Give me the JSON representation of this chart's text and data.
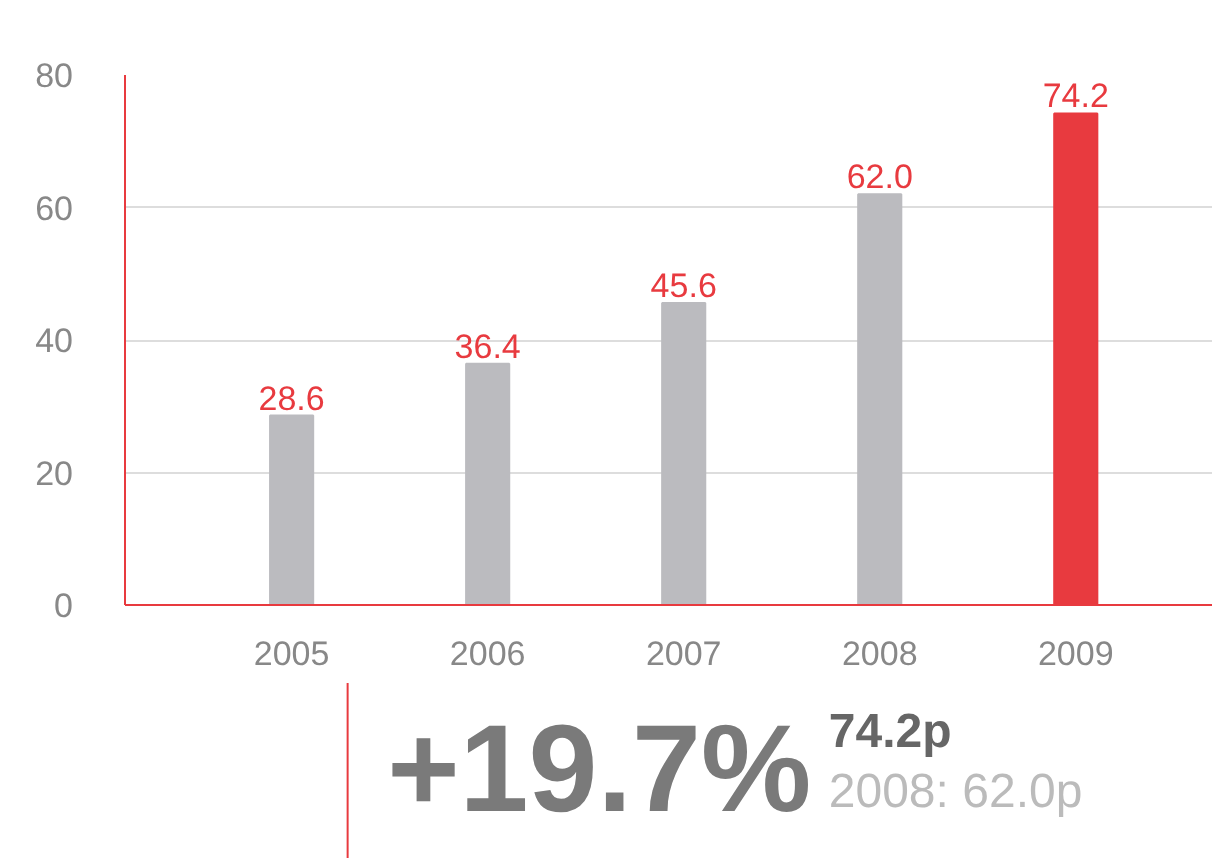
{
  "chart_data": {
    "type": "bar",
    "categories": [
      "2005",
      "2006",
      "2007",
      "2008",
      "2009"
    ],
    "values": [
      28.6,
      36.4,
      45.6,
      62.0,
      74.2
    ],
    "colors": [
      "#bbbbbf",
      "#bbbbbf",
      "#bbbbbf",
      "#bbbbbf",
      "#e83a3f"
    ],
    "value_labels": [
      "28.6",
      "36.4",
      "45.6",
      "62.0",
      "74.2"
    ],
    "ylim": [
      0,
      80
    ],
    "yticks": [
      0,
      20,
      40,
      60,
      80
    ],
    "grid": "y",
    "annotations": [
      "+19.7%",
      "74.2p",
      "2008: 62.0p"
    ]
  }
}
